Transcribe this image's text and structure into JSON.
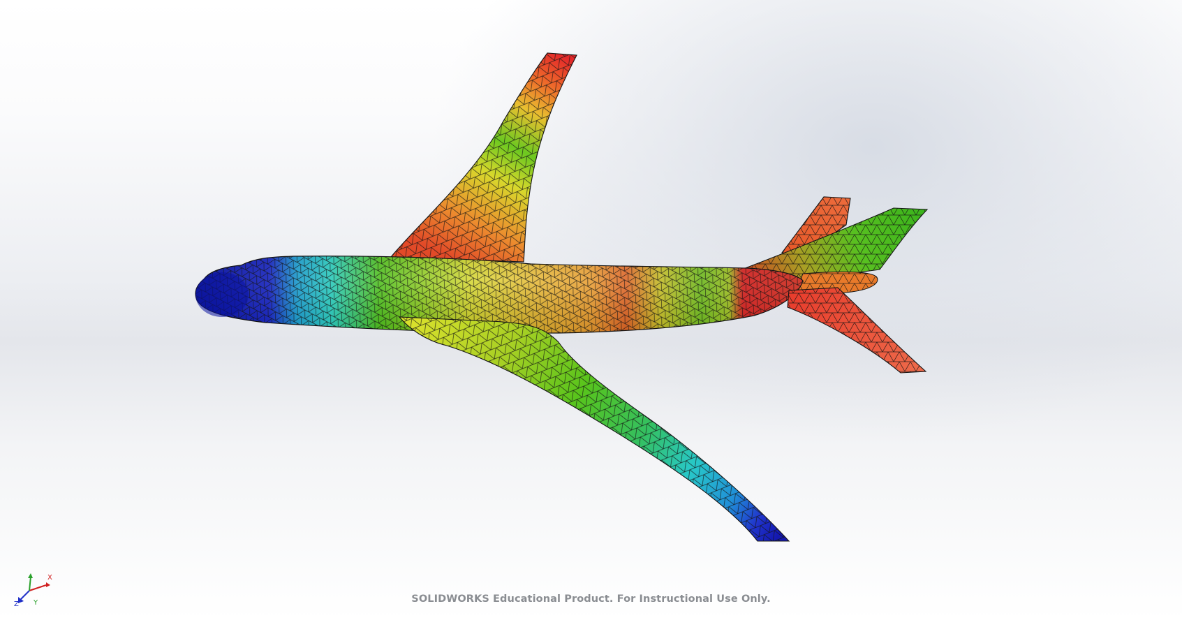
{
  "viewport": {
    "watermark": "SOLIDWORKS Educational Product. For Instructional Use Only."
  },
  "triad": {
    "x_label": "X",
    "y_label": "Y",
    "z_label": "Z"
  },
  "colors": {
    "blue": "#1a22c8",
    "cyan": "#2ad4dc",
    "green": "#3fc41a",
    "yellow": "#d6dc28",
    "orange": "#e8a02c",
    "red": "#e02a24",
    "mesh": "#141414"
  },
  "model": {
    "name": "airplane-fea-mesh-plot",
    "parts": [
      "fuselage",
      "upper-wing",
      "lower-wing",
      "vertical-stabilizer",
      "upper-horizontal-stabilizer",
      "lower-horizontal-stabilizer",
      "tail-cone"
    ]
  }
}
